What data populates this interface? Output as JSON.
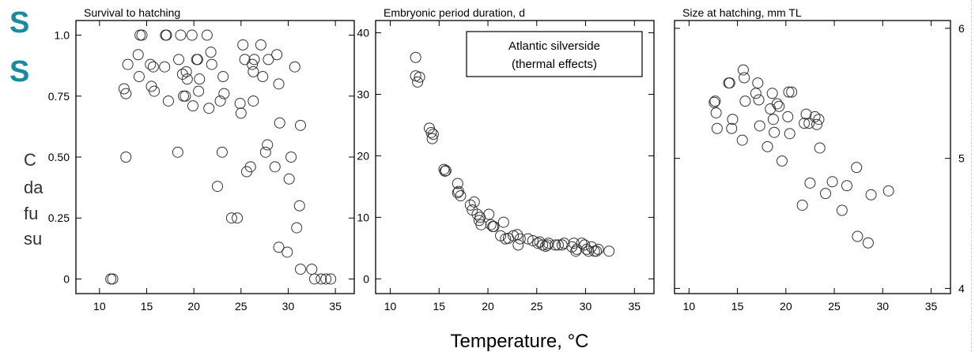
{
  "background_text": {
    "title_glyph_1": "S",
    "title_glyph_2": "S",
    "body_fragments": [
      "C",
      "da",
      "fu",
      "su"
    ]
  },
  "shared_xlabel": "Temperature, °C",
  "legend_box": {
    "line1": "Atlantic silverside",
    "line2": "(thermal effects)"
  },
  "colors": {
    "marker": "#333333",
    "axis": "#000000",
    "title_bg": "#1a8a9e"
  },
  "chart_data": [
    {
      "type": "scatter",
      "title": "Survival to hatching",
      "xlabel": "",
      "ylabel": "",
      "xlim": [
        7.5,
        37
      ],
      "ylim": [
        -0.06,
        1.06
      ],
      "xticks": [
        10,
        15,
        20,
        25,
        30,
        35
      ],
      "yticks": [
        0,
        0.25,
        0.5,
        0.75,
        1.0
      ],
      "ytick_labels": [
        "0",
        "0.25",
        "0.50",
        "0.75",
        "1.0"
      ],
      "y_axis_side": "left",
      "points": [
        [
          11.2,
          0.0
        ],
        [
          11.4,
          0.0
        ],
        [
          12.6,
          0.78
        ],
        [
          12.8,
          0.76
        ],
        [
          13.0,
          0.88
        ],
        [
          12.8,
          0.5
        ],
        [
          14.1,
          0.92
        ],
        [
          14.2,
          0.83
        ],
        [
          14.5,
          1.0
        ],
        [
          14.3,
          1.0
        ],
        [
          15.4,
          0.88
        ],
        [
          15.7,
          0.87
        ],
        [
          15.5,
          0.79
        ],
        [
          15.8,
          0.77
        ],
        [
          16.9,
          0.87
        ],
        [
          17.0,
          1.0
        ],
        [
          17.1,
          1.0
        ],
        [
          17.3,
          0.73
        ],
        [
          18.4,
          0.9
        ],
        [
          18.6,
          1.0
        ],
        [
          18.8,
          0.84
        ],
        [
          18.9,
          0.75
        ],
        [
          19.1,
          0.75
        ],
        [
          19.3,
          0.82
        ],
        [
          19.2,
          0.85
        ],
        [
          18.3,
          0.52
        ],
        [
          19.8,
          1.0
        ],
        [
          19.9,
          0.71
        ],
        [
          20.3,
          0.9
        ],
        [
          20.4,
          0.9
        ],
        [
          20.5,
          0.77
        ],
        [
          20.6,
          0.82
        ],
        [
          21.4,
          1.0
        ],
        [
          21.6,
          0.7
        ],
        [
          21.9,
          0.88
        ],
        [
          21.8,
          0.93
        ],
        [
          22.5,
          0.38
        ],
        [
          22.8,
          0.73
        ],
        [
          23.0,
          0.52
        ],
        [
          23.2,
          0.76
        ],
        [
          23.1,
          0.83
        ],
        [
          24.0,
          0.25
        ],
        [
          24.6,
          0.25
        ],
        [
          24.9,
          0.72
        ],
        [
          25.0,
          0.68
        ],
        [
          25.2,
          0.96
        ],
        [
          25.4,
          0.9
        ],
        [
          25.6,
          0.44
        ],
        [
          26.0,
          0.46
        ],
        [
          26.2,
          0.88
        ],
        [
          26.4,
          0.9
        ],
        [
          26.3,
          0.85
        ],
        [
          26.3,
          0.73
        ],
        [
          27.1,
          0.96
        ],
        [
          27.3,
          0.83
        ],
        [
          27.6,
          0.52
        ],
        [
          27.8,
          0.55
        ],
        [
          27.9,
          0.9
        ],
        [
          28.6,
          0.46
        ],
        [
          28.8,
          0.92
        ],
        [
          29.0,
          0.8
        ],
        [
          29.1,
          0.64
        ],
        [
          29.0,
          0.13
        ],
        [
          29.9,
          0.11
        ],
        [
          30.1,
          0.41
        ],
        [
          30.3,
          0.5
        ],
        [
          30.7,
          0.87
        ],
        [
          30.9,
          0.21
        ],
        [
          31.2,
          0.3
        ],
        [
          31.3,
          0.63
        ],
        [
          31.3,
          0.04
        ],
        [
          32.5,
          0.04
        ],
        [
          32.8,
          0.0
        ],
        [
          33.5,
          0.0
        ],
        [
          34.0,
          0.0
        ],
        [
          34.5,
          0.0
        ]
      ]
    },
    {
      "type": "scatter",
      "title": "Embryonic period duration, d",
      "xlabel": "",
      "ylabel": "",
      "xlim": [
        8.5,
        37
      ],
      "ylim": [
        -2.4,
        42
      ],
      "xticks": [
        10,
        15,
        20,
        25,
        30,
        35
      ],
      "yticks": [
        0,
        10,
        20,
        30,
        40
      ],
      "ytick_labels": [
        "0",
        "10",
        "20",
        "30",
        "40"
      ],
      "y_axis_side": "left",
      "points": [
        [
          12.6,
          36.0
        ],
        [
          12.6,
          33.0
        ],
        [
          12.8,
          32.0
        ],
        [
          13.0,
          32.8
        ],
        [
          14.0,
          24.5
        ],
        [
          14.2,
          23.8
        ],
        [
          14.3,
          22.8
        ],
        [
          14.4,
          23.5
        ],
        [
          15.5,
          17.8
        ],
        [
          15.6,
          17.5
        ],
        [
          15.7,
          17.6
        ],
        [
          16.9,
          15.5
        ],
        [
          16.9,
          14.0
        ],
        [
          17.2,
          13.5
        ],
        [
          17.0,
          14.2
        ],
        [
          18.2,
          12.0
        ],
        [
          18.4,
          11.2
        ],
        [
          18.6,
          12.5
        ],
        [
          18.9,
          10.5
        ],
        [
          19.1,
          9.5
        ],
        [
          19.2,
          10.0
        ],
        [
          19.3,
          8.8
        ],
        [
          20.1,
          10.5
        ],
        [
          20.3,
          8.8
        ],
        [
          20.5,
          8.5
        ],
        [
          20.6,
          8.5
        ],
        [
          21.3,
          7.0
        ],
        [
          21.6,
          9.2
        ],
        [
          21.8,
          6.5
        ],
        [
          22.1,
          6.6
        ],
        [
          22.6,
          7.0
        ],
        [
          23.1,
          5.5
        ],
        [
          23.0,
          7.2
        ],
        [
          23.3,
          6.5
        ],
        [
          24.1,
          6.5
        ],
        [
          24.6,
          6.2
        ],
        [
          25.1,
          5.8
        ],
        [
          25.3,
          6.0
        ],
        [
          25.6,
          5.5
        ],
        [
          25.9,
          5.3
        ],
        [
          26.1,
          5.5
        ],
        [
          26.2,
          5.8
        ],
        [
          26.9,
          5.5
        ],
        [
          27.2,
          5.5
        ],
        [
          27.6,
          5.5
        ],
        [
          27.8,
          5.8
        ],
        [
          28.6,
          5.2
        ],
        [
          28.8,
          5.8
        ],
        [
          29.1,
          4.8
        ],
        [
          29.0,
          4.5
        ],
        [
          29.6,
          5.8
        ],
        [
          29.9,
          5.5
        ],
        [
          30.1,
          4.8
        ],
        [
          30.3,
          4.5
        ],
        [
          30.6,
          5.2
        ],
        [
          30.9,
          4.5
        ],
        [
          31.1,
          4.5
        ],
        [
          31.3,
          4.8
        ],
        [
          32.4,
          4.5
        ]
      ]
    },
    {
      "type": "scatter",
      "title": "Size at hatching, mm TL",
      "xlabel": "",
      "ylabel": "",
      "xlim": [
        8.5,
        37
      ],
      "ylim": [
        3.96,
        6.06
      ],
      "xticks": [
        10,
        15,
        20,
        25,
        30,
        35
      ],
      "yticks": [
        4,
        5,
        6
      ],
      "ytick_labels": [
        "4",
        "5",
        "6"
      ],
      "y_axis_side": "right",
      "points": [
        [
          12.6,
          5.43
        ],
        [
          12.7,
          5.44
        ],
        [
          12.8,
          5.35
        ],
        [
          12.9,
          5.23
        ],
        [
          14.1,
          5.58
        ],
        [
          14.2,
          5.58
        ],
        [
          14.5,
          5.3
        ],
        [
          14.4,
          5.23
        ],
        [
          15.6,
          5.68
        ],
        [
          15.7,
          5.62
        ],
        [
          15.8,
          5.44
        ],
        [
          15.5,
          5.14
        ],
        [
          16.9,
          5.5
        ],
        [
          17.1,
          5.58
        ],
        [
          17.2,
          5.45
        ],
        [
          17.3,
          5.25
        ],
        [
          18.1,
          5.09
        ],
        [
          18.4,
          5.38
        ],
        [
          18.6,
          5.5
        ],
        [
          18.7,
          5.3
        ],
        [
          18.8,
          5.2
        ],
        [
          19.1,
          5.42
        ],
        [
          19.3,
          5.4
        ],
        [
          19.6,
          4.98
        ],
        [
          20.2,
          5.32
        ],
        [
          20.3,
          5.51
        ],
        [
          20.4,
          5.19
        ],
        [
          20.6,
          5.51
        ],
        [
          21.7,
          4.64
        ],
        [
          21.9,
          5.27
        ],
        [
          22.1,
          5.34
        ],
        [
          22.4,
          5.27
        ],
        [
          22.5,
          4.81
        ],
        [
          23.0,
          5.32
        ],
        [
          23.2,
          5.26
        ],
        [
          23.4,
          5.3
        ],
        [
          23.5,
          5.08
        ],
        [
          24.1,
          4.73
        ],
        [
          24.8,
          4.82
        ],
        [
          25.8,
          4.6
        ],
        [
          26.3,
          4.79
        ],
        [
          27.3,
          4.93
        ],
        [
          27.4,
          4.4
        ],
        [
          28.5,
          4.35
        ],
        [
          28.8,
          4.72
        ],
        [
          30.6,
          4.75
        ]
      ]
    }
  ]
}
